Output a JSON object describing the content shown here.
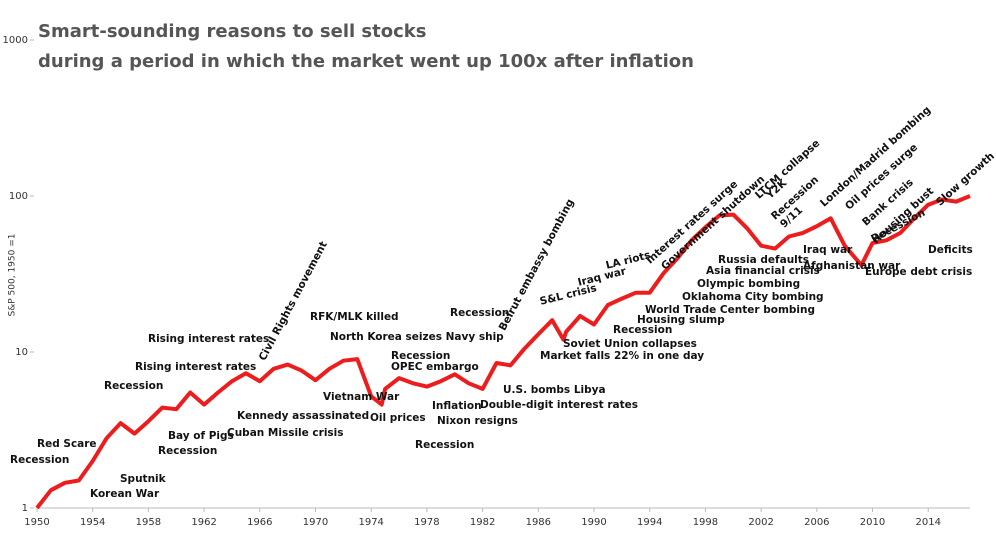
{
  "chart_data": {
    "type": "line",
    "title": "Smart-sounding reasons to sell stocks",
    "subtitle": "during a period in which the market went up 100x after inflation",
    "y_label": "S&P 500, 1950 =1",
    "log_y": true,
    "color": "#ee1c1c",
    "x": [
      1950,
      1951,
      1952,
      1953,
      1954,
      1955,
      1956,
      1957,
      1958,
      1959,
      1960,
      1961,
      1962,
      1963,
      1964,
      1965,
      1966,
      1967,
      1968,
      1969,
      1970,
      1971,
      1972,
      1973,
      1974,
      1974.75,
      1975,
      1976,
      1977,
      1978,
      1979,
      1980,
      1981,
      1982,
      1983,
      1984,
      1985,
      1986,
      1987,
      1987.8,
      1988,
      1989,
      1990,
      1991,
      1992,
      1993,
      1994,
      1995,
      1996,
      1997,
      1998,
      1999,
      2000,
      2001,
      2002,
      2003,
      2004,
      2005,
      2006,
      2007,
      2008,
      2009.2,
      2010,
      2011,
      2012,
      2013,
      2014,
      2015,
      2016,
      2017
    ],
    "values": [
      1,
      1.3,
      1.45,
      1.5,
      2.0,
      2.8,
      3.5,
      3.0,
      3.6,
      4.4,
      4.3,
      5.5,
      4.6,
      5.5,
      6.5,
      7.3,
      6.5,
      7.8,
      8.3,
      7.6,
      6.6,
      7.8,
      8.8,
      9.0,
      5.2,
      4.6,
      5.8,
      6.8,
      6.3,
      6.0,
      6.5,
      7.2,
      6.3,
      5.8,
      8.5,
      8.2,
      10.5,
      13,
      16,
      12,
      13.5,
      17,
      15,
      20,
      22,
      24,
      24,
      32,
      40,
      52,
      63,
      75,
      76,
      62,
      48,
      46,
      55,
      58,
      64,
      72,
      48,
      36,
      50,
      52,
      58,
      72,
      88,
      95,
      92,
      100
    ],
    "xlim": [
      1950,
      2017
    ],
    "xticks": [
      1950,
      1954,
      1958,
      1962,
      1966,
      1970,
      1974,
      1978,
      1982,
      1986,
      1990,
      1994,
      1998,
      2002,
      2006,
      2010,
      2014
    ],
    "ylim": [
      1,
      1000
    ],
    "yticks": [
      1,
      10,
      100,
      1000
    ],
    "annotations": [
      "Recession",
      "Red Scare",
      "Sputnik",
      "Korean War",
      "Recession",
      "Rising interest rates",
      "Rising interest rates",
      "Bay of Pigs",
      "Recession",
      "Kennedy assassinated",
      "Cuban Missile crisis",
      "Civil Rights movement",
      "RFK/MLK killed",
      "North Korea seizes Navy ship",
      "Vietnam War",
      "Recession",
      "OPEC embargo",
      "Oil prices",
      "Inflation",
      "Nixon resigns",
      "Recession",
      "Recession",
      "Double-digit interest rates",
      "U.S. bombs Libya",
      "Beirut embassy bombing",
      "Market falls 22% in one day",
      "S&L crisis",
      "Iraq war",
      "LA riots",
      "Soviet Union collapses",
      "Recession",
      "Housing slump",
      "World Trade Center bombing",
      "Oklahoma City bombing",
      "Olympic bombing",
      "Asia financial crisis",
      "Russia defaults",
      "Interest rates surge",
      "Government shutdown",
      "LTCM collapse",
      "Y2K",
      "Recession",
      "9/11",
      "London/Madrid bombing",
      "Oil prices surge",
      "Bank crisis",
      "Housing bust",
      "Slow growth",
      "Iraq war",
      "Afghanistan war",
      "Recession",
      "Europe debt crisis",
      "Deficits"
    ]
  }
}
